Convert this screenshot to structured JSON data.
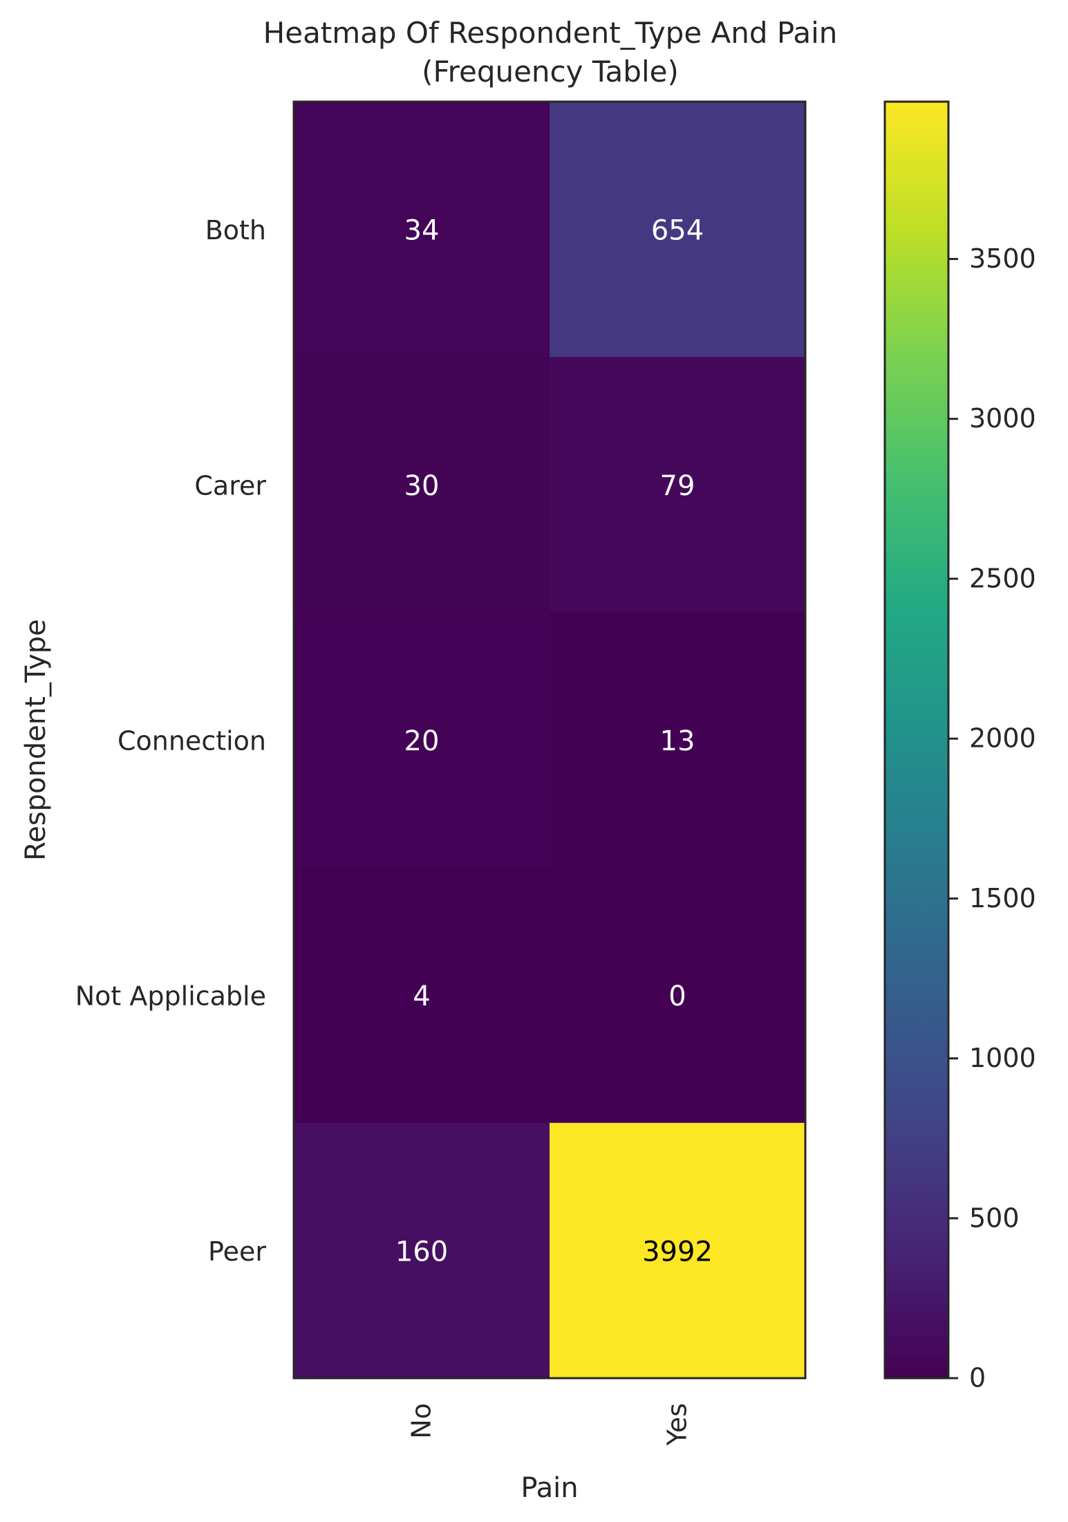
{
  "chart_data": {
    "type": "heatmap",
    "title": "Heatmap Of Respondent_Type And Pain",
    "subtitle": "(Frequency Table)",
    "xlabel": "Pain",
    "ylabel": "Respondent_Type",
    "x_categories": [
      "No",
      "Yes"
    ],
    "y_categories": [
      "Both",
      "Carer",
      "Connection",
      "Not Applicable",
      "Peer"
    ],
    "values": [
      [
        34,
        654
      ],
      [
        30,
        79
      ],
      [
        20,
        13
      ],
      [
        4,
        0
      ],
      [
        160,
        3992
      ]
    ],
    "colorbar": {
      "min": 0,
      "max": 3992,
      "ticks": [
        0,
        500,
        1000,
        1500,
        2000,
        2500,
        3000,
        3500
      ],
      "colormap": "viridis"
    },
    "grid": false
  }
}
